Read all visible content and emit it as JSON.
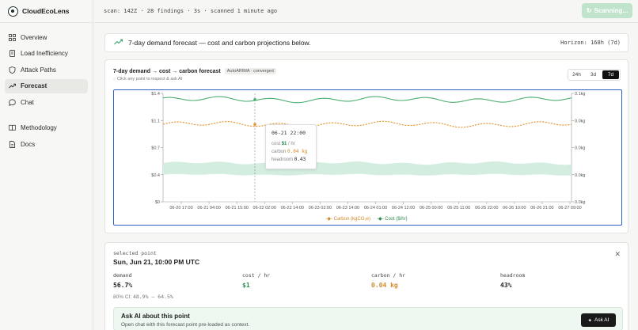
{
  "app": {
    "name": "CloudEcoLens"
  },
  "sidebar": {
    "items": [
      {
        "label": "Overview",
        "icon": "grid-icon"
      },
      {
        "label": "Load Inefficiency",
        "icon": "receipt-icon"
      },
      {
        "label": "Attack Paths",
        "icon": "shield-icon"
      },
      {
        "label": "Forecast",
        "icon": "trend-icon",
        "active": true
      },
      {
        "label": "Chat",
        "icon": "chat-icon"
      }
    ],
    "secondary": [
      {
        "label": "Methodology",
        "icon": "book-icon"
      },
      {
        "label": "Docs",
        "icon": "doc-icon"
      }
    ]
  },
  "topbar": {
    "scan_status": "scan: 142Z · 28 findings · 3s · scanned 1 minute ago",
    "scan_button": "Scanning..."
  },
  "banner": {
    "text": "7-day demand forecast — cost and carbon projections below.",
    "horizon": "Horizon: 168h (7d)"
  },
  "chart_card": {
    "title": "7-day demand → cost → carbon forecast",
    "badge": "AutoARIMA · converged",
    "hint": "Click any point to inspect & ask AI",
    "ranges": [
      "24h",
      "3d",
      "7d"
    ],
    "active_range": "7d"
  },
  "tooltip": {
    "time": "06-21 22:00",
    "cost_label": "cost",
    "cost_value": "$1",
    "cost_unit": "/ hr",
    "carbon_label": "carbon",
    "carbon_value": "0.04 kg",
    "headroom_label": "headroom",
    "headroom_value": "0.43"
  },
  "chart_data": {
    "type": "line",
    "x_ticks": [
      "06-20 17:00",
      "06-21 04:00",
      "06-21 15:00",
      "06-22 02:00",
      "06-22 14:00",
      "06-23 02:00",
      "06-23 14:00",
      "06-24 01:00",
      "06-24 12:00",
      "06-25 00:00",
      "06-25 11:00",
      "06-25 22:00",
      "06-26 10:00",
      "06-26 21:00",
      "06-27 09:00"
    ],
    "y_left_ticks": [
      "$1.4",
      "$1.1",
      "$0.7",
      "$0.4",
      "$0"
    ],
    "y_right_ticks": [
      "0.1kg",
      "0.0kg",
      "0.0kg",
      "0.0kg",
      "0.0kg"
    ],
    "y_left_range": [
      0,
      1.4
    ],
    "series": [
      {
        "name": "Carbon (kgCO₂e)",
        "color": "#e0952e",
        "style": "dashed",
        "level": 1.0
      },
      {
        "name": "Cost ($/hr)",
        "color": "#4caf72",
        "style": "solid",
        "level": 1.32
      }
    ],
    "band_color": "#d3ede0",
    "band_range": [
      0.35,
      0.5
    ],
    "selected_x": "06-21 22:00",
    "legend_position": "bottom"
  },
  "selected": {
    "label": "selected point",
    "date": "Sun, Jun 21, 10:00 PM UTC",
    "metrics": [
      {
        "label": "demand",
        "value": "56.7%",
        "color": "#222222"
      },
      {
        "label": "cost / hr",
        "value": "$1",
        "color": "#2e8a4e"
      },
      {
        "label": "carbon / hr",
        "value": "0.04 kg",
        "color": "#d28a2a"
      },
      {
        "label": "headroom",
        "value": "43%",
        "color": "#222222"
      }
    ],
    "ci_label": "80% CI:",
    "ci_value": "48.9% – 64.5%"
  },
  "ask": {
    "title": "Ask AI about this point",
    "subtitle": "Open chat with this forecast point pre-loaded as context.",
    "button": "Ask AI"
  }
}
